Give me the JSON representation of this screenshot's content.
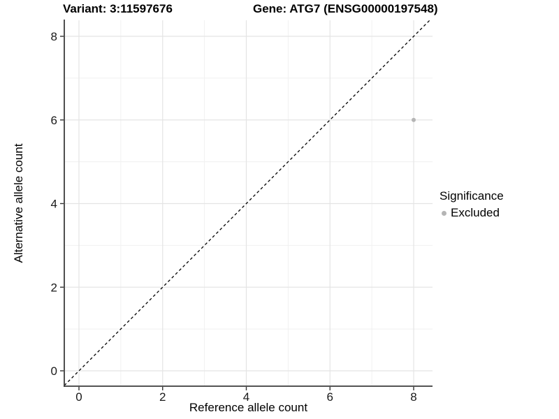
{
  "page": {
    "background": "#ffffff"
  },
  "chart_data": {
    "type": "scatter",
    "title_left": "Variant: 3:11597676",
    "title_right": "Gene: ATG7 (ENSG00000197548)",
    "xlabel": "Reference allele count",
    "ylabel": "Alternative allele count",
    "xlim": [
      -0.35,
      8.45
    ],
    "ylim": [
      -0.37,
      8.38
    ],
    "x_ticks": [
      0,
      2,
      4,
      6,
      8
    ],
    "y_ticks": [
      0,
      2,
      4,
      6,
      8
    ],
    "x_minor": [
      1,
      3,
      5,
      7
    ],
    "y_minor": [
      1,
      3,
      5,
      7
    ],
    "grid": "major-and-minor",
    "identity_line": {
      "type": "y=x",
      "style": "dashed",
      "color": "#000000"
    },
    "series": [
      {
        "name": "Excluded",
        "color": "#b5b5b5",
        "points": [
          {
            "x": 8,
            "y": 6
          }
        ]
      }
    ],
    "legend": {
      "title": "Significance",
      "position": "right",
      "entries": [
        {
          "label": "Excluded",
          "color": "#b5b5b5"
        }
      ]
    },
    "colors": {
      "axis_line": "#3c3c3c",
      "tick_mark": "#333333",
      "tick_label": "#1a1a1a",
      "grid_major": "#e4e4e4",
      "grid_minor": "#f0f0f0",
      "point": "#b5b5b5"
    }
  }
}
